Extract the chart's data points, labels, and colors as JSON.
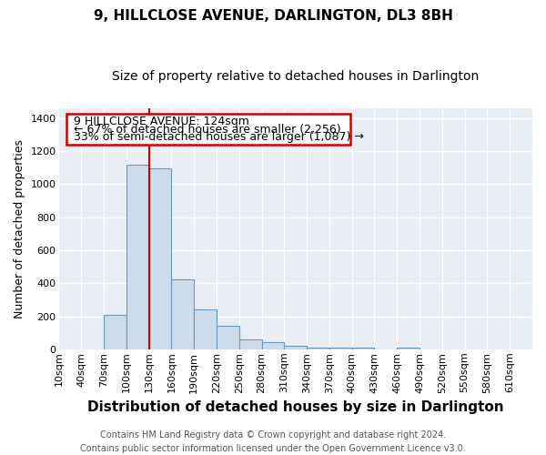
{
  "title1": "9, HILLCLOSE AVENUE, DARLINGTON, DL3 8BH",
  "title2": "Size of property relative to detached houses in Darlington",
  "xlabel": "Distribution of detached houses by size in Darlington",
  "ylabel": "Number of detached properties",
  "footer1": "Contains HM Land Registry data © Crown copyright and database right 2024.",
  "footer2": "Contains public sector information licensed under the Open Government Licence v3.0.",
  "annotation_line1": "9 HILLCLOSE AVENUE: 124sqm",
  "annotation_line2": "← 67% of detached houses are smaller (2,256)",
  "annotation_line3": "33% of semi-detached houses are larger (1,087) →",
  "bar_lefts": [
    10,
    40,
    70,
    100,
    130,
    160,
    190,
    220,
    250,
    280,
    310,
    340,
    370,
    400,
    430,
    460,
    490,
    520,
    550,
    580
  ],
  "bar_heights": [
    0,
    0,
    210,
    1120,
    1095,
    425,
    240,
    140,
    58,
    43,
    20,
    13,
    12,
    8,
    0,
    10,
    0,
    0,
    0,
    0
  ],
  "bar_color": "#ccdcec",
  "bar_edge_color": "#6699bb",
  "vline_x": 130,
  "vline_color": "#cc0000",
  "ylim": [
    0,
    1460
  ],
  "xlim": [
    10,
    640
  ],
  "yticks": [
    0,
    200,
    400,
    600,
    800,
    1000,
    1200,
    1400
  ],
  "tick_labels": [
    "10sqm",
    "40sqm",
    "70sqm",
    "100sqm",
    "130sqm",
    "160sqm",
    "190sqm",
    "220sqm",
    "250sqm",
    "280sqm",
    "310sqm",
    "340sqm",
    "370sqm",
    "400sqm",
    "430sqm",
    "460sqm",
    "490sqm",
    "520sqm",
    "550sqm",
    "580sqm",
    "610sqm"
  ],
  "tick_positions": [
    10,
    40,
    70,
    100,
    130,
    160,
    190,
    220,
    250,
    280,
    310,
    340,
    370,
    400,
    430,
    460,
    490,
    520,
    550,
    580,
    610
  ],
  "annotation_box_facecolor": "#ffffff",
  "annotation_box_edgecolor": "#cc0000",
  "bg_color": "#ffffff",
  "axes_bg_color": "#e8eef4",
  "grid_color": "#ffffff",
  "title1_fontsize": 11,
  "title2_fontsize": 10,
  "xlabel_fontsize": 11,
  "ylabel_fontsize": 9,
  "tick_fontsize": 8,
  "footer_fontsize": 7,
  "annot_fontsize": 9
}
